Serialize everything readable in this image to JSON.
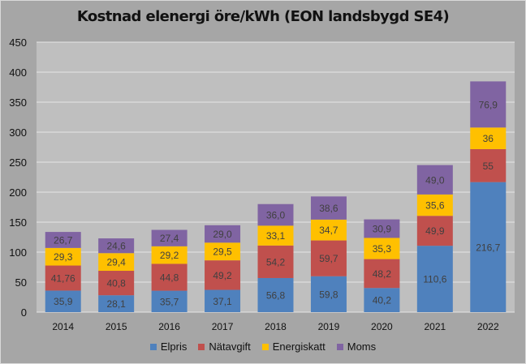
{
  "chart_data": {
    "type": "bar",
    "stacked": true,
    "title": "Kostnad elenergi öre/kWh (EON landsbygd SE4)",
    "xlabel": "",
    "ylabel": "",
    "ylim": [
      0,
      450
    ],
    "yticks": [
      "0",
      "50",
      "100",
      "150",
      "200",
      "250",
      "300",
      "350",
      "400",
      "450"
    ],
    "ytick_values": [
      0,
      50,
      100,
      150,
      200,
      250,
      300,
      350,
      400,
      450
    ],
    "grid": true,
    "legend_position": "bottom",
    "categories": [
      "2014",
      "2015",
      "2016",
      "2017",
      "2018",
      "2019",
      "2020",
      "2021",
      "2022"
    ],
    "series": [
      {
        "name": "Elpris",
        "color": "#4f81bd",
        "values": [
          35.9,
          28.1,
          35.7,
          37.1,
          56.8,
          59.8,
          40.2,
          110.6,
          216.7
        ],
        "labels": [
          "35,9",
          "28,1",
          "35,7",
          "37,1",
          "56,8",
          "59,8",
          "40,2",
          "110,6",
          "216,7"
        ]
      },
      {
        "name": "Nätavgift",
        "color": "#c0504d",
        "values": [
          41.76,
          40.8,
          44.8,
          49.2,
          54.2,
          59.7,
          48.2,
          49.9,
          55
        ],
        "labels": [
          "41,76",
          "40,8",
          "44,8",
          "49,2",
          "54,2",
          "59,7",
          "48,2",
          "49,9",
          "55"
        ]
      },
      {
        "name": "Energiskatt",
        "color": "#ffc000",
        "values": [
          29.3,
          29.4,
          29.2,
          29.5,
          33.1,
          34.7,
          35.3,
          35.6,
          36
        ],
        "labels": [
          "29,3",
          "29,4",
          "29,2",
          "29,5",
          "33,1",
          "34,7",
          "35,3",
          "35,6",
          "36"
        ]
      },
      {
        "name": "Moms",
        "color": "#8064a2",
        "values": [
          26.7,
          24.6,
          27.4,
          29.0,
          36.0,
          38.6,
          30.9,
          49.0,
          76.9
        ],
        "labels": [
          "26,7",
          "24,6",
          "27,4",
          "29,0",
          "36,0",
          "38,6",
          "30,9",
          "49,0",
          "76,9"
        ]
      }
    ]
  },
  "colors": {
    "frame": "#a6a6a6",
    "plot": "#bfbfbf",
    "grid": "#e6e6e6",
    "label_text": "#404040"
  }
}
